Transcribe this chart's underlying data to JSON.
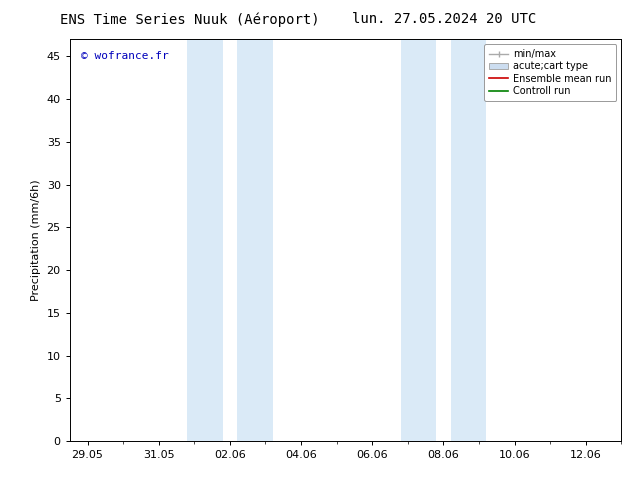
{
  "title_left": "ENS Time Series Nuuk (Aéroport)",
  "title_right": "lun. 27.05.2024 20 UTC",
  "ylabel": "Precipitation (mm/6h)",
  "watermark": "© wofrance.fr",
  "watermark_color": "#0000bb",
  "ylim": [
    0,
    47
  ],
  "yticks": [
    0,
    5,
    10,
    15,
    20,
    25,
    30,
    35,
    40,
    45
  ],
  "xtick_labels": [
    "29.05",
    "31.05",
    "02.06",
    "04.06",
    "06.06",
    "08.06",
    "10.06",
    "12.06"
  ],
  "xtick_positions": [
    0,
    2,
    4,
    6,
    8,
    10,
    12,
    14
  ],
  "xlim": [
    -0.5,
    15.0
  ],
  "shaded_regions": [
    {
      "x_start": 2.8,
      "x_end": 3.8
    },
    {
      "x_start": 4.2,
      "x_end": 5.2
    },
    {
      "x_start": 8.8,
      "x_end": 9.8
    },
    {
      "x_start": 10.2,
      "x_end": 11.2
    }
  ],
  "shade_color": "#daeaf7",
  "shade_alpha": 1.0,
  "bg_color": "#ffffff",
  "legend_items": [
    {
      "label": "min/max",
      "color": "#aaaaaa",
      "linestyle": "-",
      "linewidth": 1.0,
      "type": "minmax"
    },
    {
      "label": "acute;cart type",
      "color": "#ccddf0",
      "edgecolor": "#aaaaaa",
      "type": "box"
    },
    {
      "label": "Ensemble mean run",
      "color": "#cc0000",
      "linestyle": "-",
      "linewidth": 1.2,
      "type": "line"
    },
    {
      "label": "Controll run",
      "color": "#008000",
      "linestyle": "-",
      "linewidth": 1.2,
      "type": "line"
    }
  ],
  "tick_fontsize": 8,
  "label_fontsize": 8,
  "title_fontsize": 10,
  "legend_fontsize": 7
}
